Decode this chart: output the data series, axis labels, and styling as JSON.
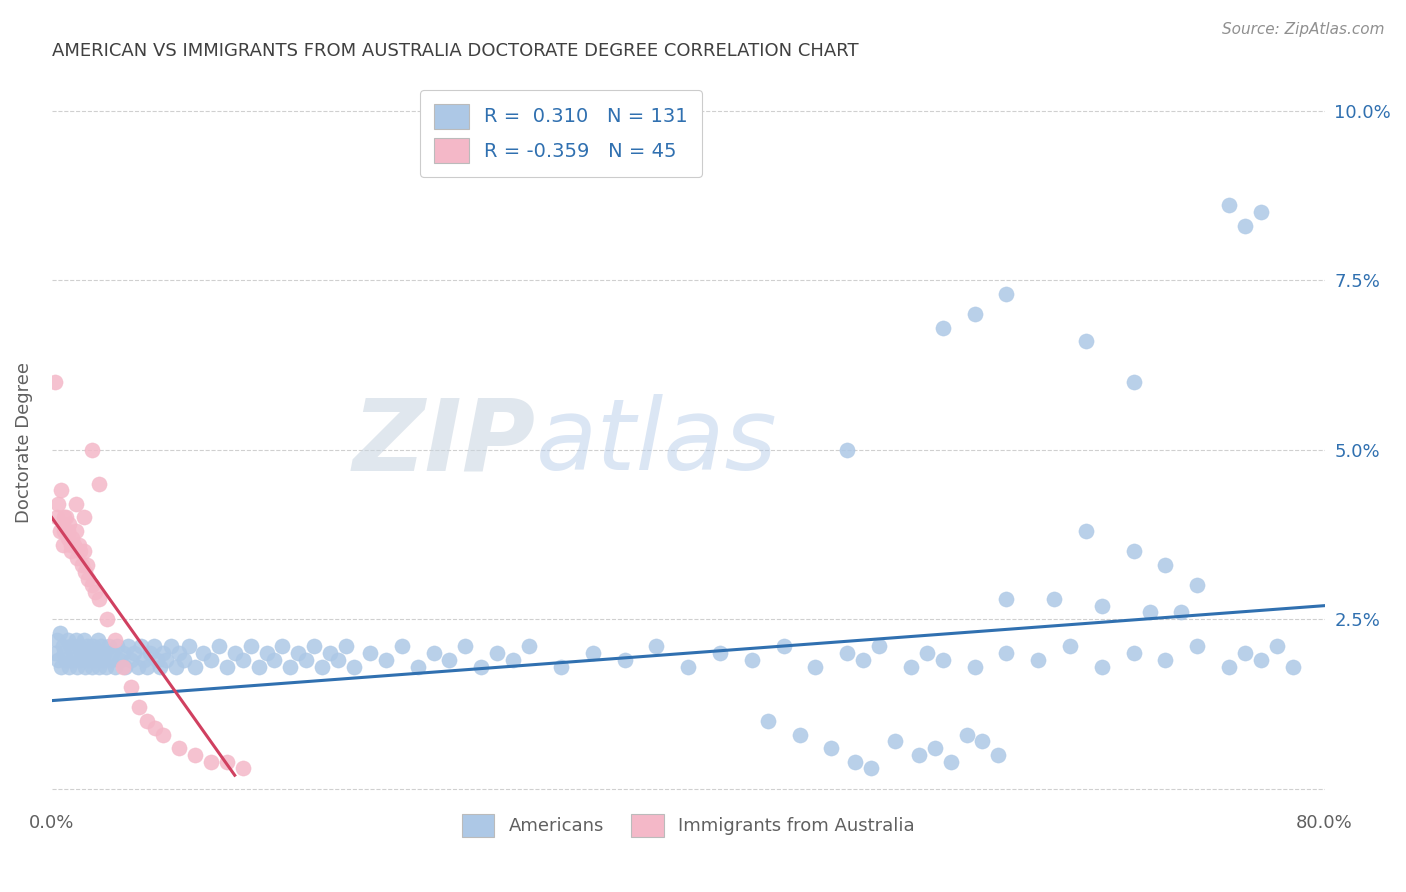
{
  "title": "AMERICAN VS IMMIGRANTS FROM AUSTRALIA DOCTORATE DEGREE CORRELATION CHART",
  "source": "Source: ZipAtlas.com",
  "ylabel": "Doctorate Degree",
  "watermark_zip": "ZIP",
  "watermark_atlas": "atlas",
  "xlim": [
    0.0,
    0.8
  ],
  "ylim": [
    -0.003,
    0.105
  ],
  "xtick_positions": [
    0.0,
    0.1,
    0.2,
    0.3,
    0.4,
    0.5,
    0.6,
    0.7,
    0.8
  ],
  "xtick_labels": [
    "0.0%",
    "",
    "",
    "",
    "",
    "",
    "",
    "",
    "80.0%"
  ],
  "ytick_positions": [
    0.0,
    0.025,
    0.05,
    0.075,
    0.1
  ],
  "ytick_labels": [
    "",
    "2.5%",
    "5.0%",
    "7.5%",
    "10.0%"
  ],
  "blue_color": "#adc8e6",
  "pink_color": "#f4b8c8",
  "blue_line_color": "#3070b0",
  "pink_line_color": "#d04060",
  "legend_text_color": "#3070b0",
  "grid_color": "#d0d0d0",
  "title_color": "#404040",
  "source_color": "#909090",
  "ylabel_color": "#606060",
  "tick_color": "#606060",
  "background_color": "#ffffff",
  "blue_line_x": [
    0.0,
    0.8
  ],
  "blue_line_y": [
    0.013,
    0.027
  ],
  "pink_line_x": [
    0.0,
    0.115
  ],
  "pink_line_y": [
    0.04,
    0.002
  ],
  "americans_x": [
    0.002,
    0.003,
    0.004,
    0.005,
    0.006,
    0.007,
    0.008,
    0.009,
    0.01,
    0.011,
    0.012,
    0.013,
    0.014,
    0.015,
    0.016,
    0.017,
    0.018,
    0.019,
    0.02,
    0.021,
    0.022,
    0.023,
    0.024,
    0.025,
    0.026,
    0.027,
    0.028,
    0.029,
    0.03,
    0.031,
    0.032,
    0.033,
    0.034,
    0.036,
    0.037,
    0.038,
    0.04,
    0.041,
    0.043,
    0.045,
    0.046,
    0.048,
    0.05,
    0.052,
    0.054,
    0.056,
    0.058,
    0.06,
    0.062,
    0.064,
    0.066,
    0.068,
    0.07,
    0.072,
    0.075,
    0.078,
    0.08,
    0.083,
    0.086,
    0.09,
    0.095,
    0.1,
    0.105,
    0.11,
    0.115,
    0.12,
    0.125,
    0.13,
    0.135,
    0.14,
    0.145,
    0.15,
    0.155,
    0.16,
    0.165,
    0.17,
    0.175,
    0.18,
    0.185,
    0.19,
    0.2,
    0.21,
    0.22,
    0.23,
    0.24,
    0.25,
    0.26,
    0.27,
    0.28,
    0.29,
    0.3,
    0.32,
    0.34,
    0.36,
    0.38,
    0.4,
    0.42,
    0.44,
    0.46,
    0.48,
    0.5,
    0.51,
    0.52,
    0.54,
    0.55,
    0.56,
    0.58,
    0.6,
    0.62,
    0.64,
    0.66,
    0.68,
    0.7,
    0.72,
    0.74,
    0.75,
    0.76,
    0.77,
    0.78,
    0.45,
    0.47,
    0.49,
    0.505,
    0.515,
    0.53,
    0.545,
    0.555,
    0.565,
    0.575,
    0.585,
    0.595
  ],
  "americans_y": [
    0.02,
    0.022,
    0.019,
    0.023,
    0.018,
    0.021,
    0.02,
    0.019,
    0.022,
    0.018,
    0.021,
    0.019,
    0.02,
    0.022,
    0.018,
    0.021,
    0.019,
    0.02,
    0.022,
    0.018,
    0.021,
    0.019,
    0.02,
    0.018,
    0.021,
    0.019,
    0.02,
    0.022,
    0.018,
    0.021,
    0.019,
    0.02,
    0.018,
    0.021,
    0.019,
    0.02,
    0.018,
    0.021,
    0.019,
    0.02,
    0.018,
    0.021,
    0.019,
    0.02,
    0.018,
    0.021,
    0.019,
    0.018,
    0.02,
    0.021,
    0.019,
    0.018,
    0.02,
    0.019,
    0.021,
    0.018,
    0.02,
    0.019,
    0.021,
    0.018,
    0.02,
    0.019,
    0.021,
    0.018,
    0.02,
    0.019,
    0.021,
    0.018,
    0.02,
    0.019,
    0.021,
    0.018,
    0.02,
    0.019,
    0.021,
    0.018,
    0.02,
    0.019,
    0.021,
    0.018,
    0.02,
    0.019,
    0.021,
    0.018,
    0.02,
    0.019,
    0.021,
    0.018,
    0.02,
    0.019,
    0.021,
    0.018,
    0.02,
    0.019,
    0.021,
    0.018,
    0.02,
    0.019,
    0.021,
    0.018,
    0.02,
    0.019,
    0.021,
    0.018,
    0.02,
    0.019,
    0.018,
    0.02,
    0.019,
    0.021,
    0.018,
    0.02,
    0.019,
    0.021,
    0.018,
    0.02,
    0.019,
    0.021,
    0.018,
    0.01,
    0.008,
    0.006,
    0.004,
    0.003,
    0.007,
    0.005,
    0.006,
    0.004,
    0.008,
    0.007,
    0.005
  ],
  "americans_y_high": [
    0.068,
    0.07,
    0.073,
    0.086,
    0.083,
    0.085,
    0.066,
    0.06,
    0.05,
    0.038,
    0.035,
    0.033,
    0.03,
    0.028,
    0.028,
    0.027,
    0.026,
    0.026
  ],
  "americans_x_high": [
    0.56,
    0.58,
    0.6,
    0.74,
    0.75,
    0.76,
    0.65,
    0.68,
    0.5,
    0.65,
    0.68,
    0.7,
    0.72,
    0.6,
    0.63,
    0.66,
    0.69,
    0.71
  ],
  "immigrants_x": [
    0.002,
    0.003,
    0.004,
    0.005,
    0.006,
    0.007,
    0.008,
    0.009,
    0.01,
    0.011,
    0.012,
    0.013,
    0.014,
    0.015,
    0.016,
    0.017,
    0.018,
    0.019,
    0.02,
    0.021,
    0.022,
    0.023,
    0.025,
    0.027,
    0.03,
    0.035,
    0.04,
    0.045,
    0.05,
    0.055,
    0.06,
    0.065,
    0.07,
    0.08,
    0.09,
    0.1,
    0.11,
    0.12,
    0.025,
    0.03,
    0.015,
    0.02,
    0.01,
    0.012,
    0.008
  ],
  "immigrants_y": [
    0.06,
    0.04,
    0.042,
    0.038,
    0.044,
    0.036,
    0.038,
    0.04,
    0.037,
    0.039,
    0.035,
    0.037,
    0.036,
    0.038,
    0.034,
    0.036,
    0.035,
    0.033,
    0.035,
    0.032,
    0.033,
    0.031,
    0.03,
    0.029,
    0.028,
    0.025,
    0.022,
    0.018,
    0.015,
    0.012,
    0.01,
    0.009,
    0.008,
    0.006,
    0.005,
    0.004,
    0.004,
    0.003,
    0.05,
    0.045,
    0.042,
    0.04,
    0.038,
    0.036,
    0.04
  ]
}
